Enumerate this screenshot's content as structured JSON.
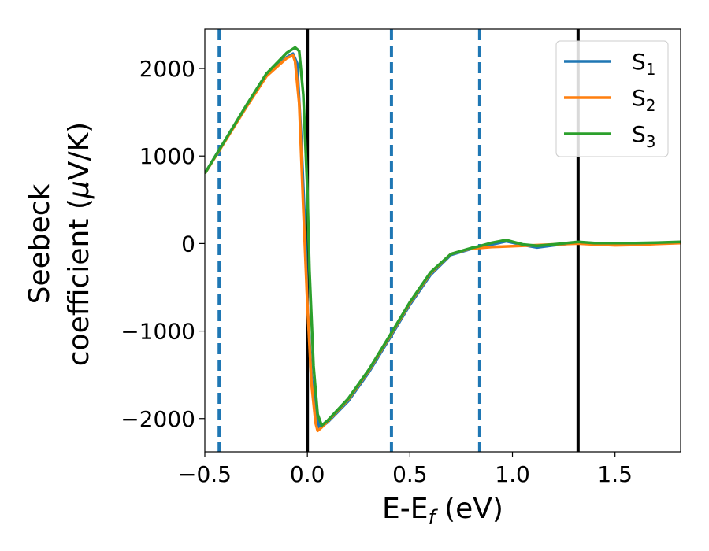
{
  "chart_data": {
    "type": "line",
    "xlabel": {
      "main": "E-E",
      "sub": "f",
      "suffix": " (eV)"
    },
    "ylabel": {
      "line1": "Seebeck",
      "line2": "coefficient  (",
      "mu": "μ",
      "line2_end": "V/K)"
    },
    "xlim": [
      -0.5,
      1.82
    ],
    "ylim": [
      -2380,
      2450
    ],
    "x_ticks": [
      -0.5,
      0.0,
      0.5,
      1.0,
      1.5
    ],
    "x_tick_labels": [
      "−0.5",
      "0.0",
      "0.5",
      "1.0",
      "1.5"
    ],
    "y_ticks": [
      -2000,
      -1000,
      0,
      1000,
      2000
    ],
    "y_tick_labels": [
      "−2000",
      "−1000",
      "0",
      "1000",
      "2000"
    ],
    "vlines_solid": [
      0.0,
      1.32
    ],
    "vlines_dashed": [
      -0.43,
      0.41,
      0.84
    ],
    "legend_position": "upper-right",
    "colors": {
      "S1": "#1f77b4",
      "S2": "#ff7f0e",
      "S3": "#2ca02c",
      "solid_line": "#000000"
    },
    "series": [
      {
        "id": "S1",
        "name": "S",
        "sub": "1",
        "color": "#1f77b4",
        "points": [
          [
            -0.5,
            800
          ],
          [
            -0.43,
            1070
          ],
          [
            -0.3,
            1560
          ],
          [
            -0.2,
            1920
          ],
          [
            -0.1,
            2130
          ],
          [
            -0.07,
            2170
          ],
          [
            -0.05,
            2060
          ],
          [
            -0.03,
            1200
          ],
          [
            -0.01,
            100
          ],
          [
            0.0,
            -700
          ],
          [
            0.02,
            -1500
          ],
          [
            0.04,
            -1950
          ],
          [
            0.06,
            -2110
          ],
          [
            0.1,
            -2040
          ],
          [
            0.2,
            -1800
          ],
          [
            0.3,
            -1470
          ],
          [
            0.41,
            -1050
          ],
          [
            0.5,
            -700
          ],
          [
            0.6,
            -360
          ],
          [
            0.7,
            -130
          ],
          [
            0.8,
            -60
          ],
          [
            0.84,
            -40
          ],
          [
            0.9,
            -10
          ],
          [
            0.97,
            25
          ],
          [
            1.05,
            -15
          ],
          [
            1.12,
            -45
          ],
          [
            1.2,
            -20
          ],
          [
            1.32,
            10
          ],
          [
            1.4,
            -5
          ],
          [
            1.5,
            -5
          ],
          [
            1.6,
            -5
          ],
          [
            1.7,
            5
          ],
          [
            1.82,
            10
          ]
        ]
      },
      {
        "id": "S2",
        "name": "S",
        "sub": "2",
        "color": "#ff7f0e",
        "points": [
          [
            -0.5,
            800
          ],
          [
            -0.43,
            1060
          ],
          [
            -0.3,
            1550
          ],
          [
            -0.2,
            1910
          ],
          [
            -0.1,
            2120
          ],
          [
            -0.07,
            2150
          ],
          [
            -0.06,
            2080
          ],
          [
            -0.04,
            1600
          ],
          [
            -0.02,
            400
          ],
          [
            0.0,
            -700
          ],
          [
            0.02,
            -1600
          ],
          [
            0.04,
            -2050
          ],
          [
            0.05,
            -2140
          ],
          [
            0.07,
            -2100
          ],
          [
            0.1,
            -2030
          ],
          [
            0.2,
            -1780
          ],
          [
            0.3,
            -1450
          ],
          [
            0.41,
            -1030
          ],
          [
            0.5,
            -680
          ],
          [
            0.6,
            -340
          ],
          [
            0.7,
            -120
          ],
          [
            0.8,
            -55
          ],
          [
            0.84,
            -50
          ],
          [
            0.9,
            -40
          ],
          [
            1.0,
            -30
          ],
          [
            1.1,
            -20
          ],
          [
            1.2,
            -10
          ],
          [
            1.32,
            0
          ],
          [
            1.4,
            -10
          ],
          [
            1.5,
            -20
          ],
          [
            1.6,
            -15
          ],
          [
            1.7,
            -5
          ],
          [
            1.82,
            5
          ]
        ]
      },
      {
        "id": "S3",
        "name": "S",
        "sub": "3",
        "color": "#2ca02c",
        "points": [
          [
            -0.5,
            800
          ],
          [
            -0.43,
            1070
          ],
          [
            -0.3,
            1570
          ],
          [
            -0.2,
            1940
          ],
          [
            -0.1,
            2180
          ],
          [
            -0.06,
            2240
          ],
          [
            -0.04,
            2200
          ],
          [
            -0.02,
            1700
          ],
          [
            0.0,
            600
          ],
          [
            0.01,
            -300
          ],
          [
            0.03,
            -1400
          ],
          [
            0.05,
            -1950
          ],
          [
            0.07,
            -2080
          ],
          [
            0.1,
            -2020
          ],
          [
            0.2,
            -1770
          ],
          [
            0.3,
            -1440
          ],
          [
            0.41,
            -1020
          ],
          [
            0.5,
            -670
          ],
          [
            0.6,
            -330
          ],
          [
            0.7,
            -120
          ],
          [
            0.8,
            -50
          ],
          [
            0.84,
            -30
          ],
          [
            0.9,
            10
          ],
          [
            0.97,
            40
          ],
          [
            1.05,
            -10
          ],
          [
            1.12,
            -25
          ],
          [
            1.2,
            -10
          ],
          [
            1.32,
            20
          ],
          [
            1.4,
            5
          ],
          [
            1.5,
            5
          ],
          [
            1.6,
            5
          ],
          [
            1.7,
            10
          ],
          [
            1.82,
            20
          ]
        ]
      }
    ]
  }
}
